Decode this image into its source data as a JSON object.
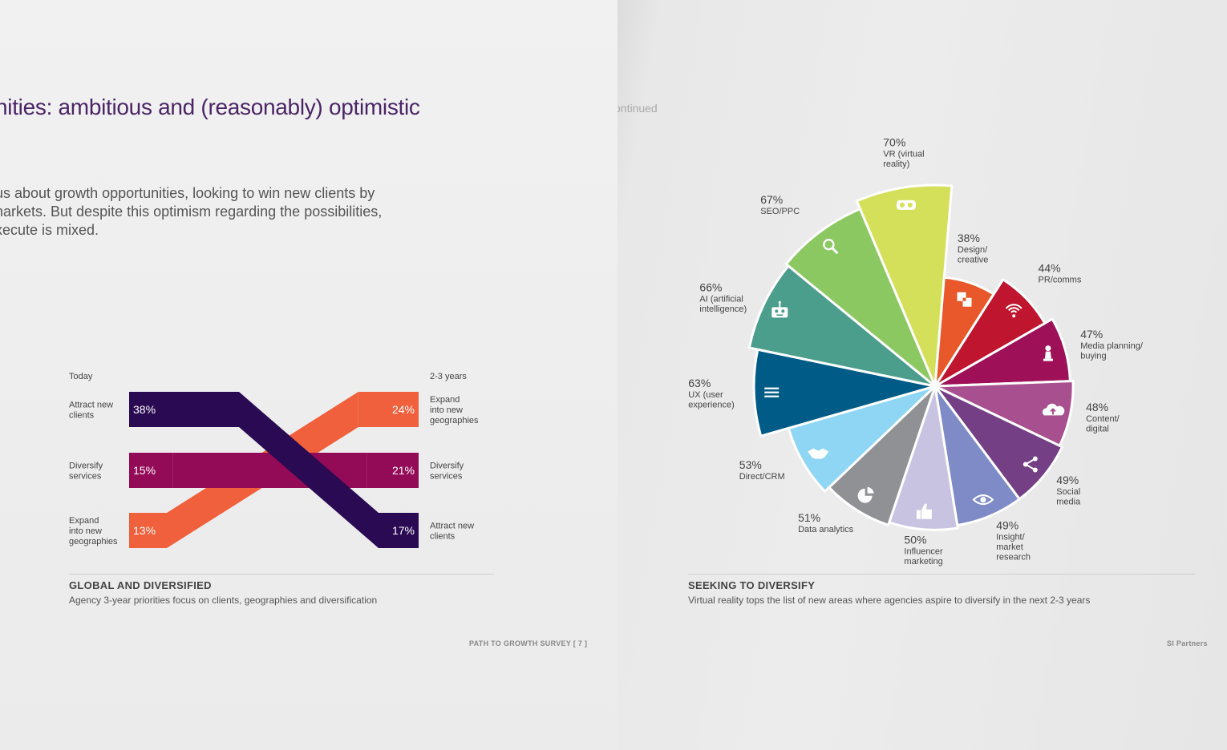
{
  "left_page": {
    "headline": "nities: ambitious and (reasonably) optimistic",
    "intro_lines": [
      "us about growth opportunities, looking to win new clients by",
      "narkets. But despite this optimism regarding the possibilities,",
      "xecute is mixed."
    ],
    "caption_title": "GLOBAL AND DIVERSIFIED",
    "caption_sub": "Agency 3-year priorities focus on clients, geographies and diversification",
    "footer": "PATH TO GROWTH SURVEY  [ 7 ]"
  },
  "right_page": {
    "continued": "ontinued",
    "caption_title": "SEEKING TO DIVERSIFY",
    "caption_sub": "Virtual reality tops the list of new areas where agencies aspire to diversify in the next 2-3 years",
    "footer": "SI Partners"
  },
  "colors": {
    "attract": "#2a0a52",
    "diversify": "#930a57",
    "expand": "#f0603c"
  },
  "chart_data": [
    {
      "type": "slope",
      "left_header": "Today",
      "right_header": "2-3 years",
      "left": [
        {
          "label_lines": [
            "Attract new",
            "clients"
          ],
          "value": 38,
          "value_label": "38%",
          "series": "attract"
        },
        {
          "label_lines": [
            "Diversify",
            "services"
          ],
          "value": 15,
          "value_label": "15%",
          "series": "diversify"
        },
        {
          "label_lines": [
            "Expand",
            "into new",
            "geographies"
          ],
          "value": 13,
          "value_label": "13%",
          "series": "expand"
        }
      ],
      "right": [
        {
          "label_lines": [
            "Expand",
            "into new",
            "geographies"
          ],
          "value": 24,
          "value_label": "24%",
          "series": "expand"
        },
        {
          "label_lines": [
            "Diversify",
            "services"
          ],
          "value": 21,
          "value_label": "21%",
          "series": "diversify"
        },
        {
          "label_lines": [
            "Attract new",
            "clients"
          ],
          "value": 17,
          "value_label": "17%",
          "series": "attract"
        }
      ]
    },
    {
      "type": "pie",
      "slices": [
        {
          "pct": "70%",
          "value": 70,
          "label_lines": [
            "VR (virtual",
            "reality)"
          ],
          "color": "#d5e05a",
          "icon": "vr-headset-icon"
        },
        {
          "pct": "38%",
          "value": 38,
          "label_lines": [
            "Design/",
            "creative"
          ],
          "color": "#e8582a",
          "icon": "design-shapes-icon"
        },
        {
          "pct": "44%",
          "value": 44,
          "label_lines": [
            "PR/comms"
          ],
          "color": "#c0152f",
          "icon": "wifi-icon"
        },
        {
          "pct": "47%",
          "value": 47,
          "label_lines": [
            "Media planning/",
            "buying"
          ],
          "color": "#9e1058",
          "icon": "chess-piece-icon"
        },
        {
          "pct": "48%",
          "value": 48,
          "label_lines": [
            "Content/",
            "digital"
          ],
          "color": "#a8508f",
          "icon": "cloud-upload-icon"
        },
        {
          "pct": "49%",
          "value": 49,
          "label_lines": [
            "Social",
            "media"
          ],
          "color": "#743f85",
          "icon": "share-icon"
        },
        {
          "pct": "49%",
          "value": 49,
          "label_lines": [
            "Insight/",
            "market",
            "research"
          ],
          "color": "#7f8bc6",
          "icon": "eye-icon"
        },
        {
          "pct": "50%",
          "value": 50,
          "label_lines": [
            "Influencer",
            "marketing"
          ],
          "color": "#c9c3e2",
          "icon": "thumbs-up-icon"
        },
        {
          "pct": "51%",
          "value": 51,
          "label_lines": [
            "Data analytics"
          ],
          "color": "#8f9194",
          "icon": "pie-chart-icon"
        },
        {
          "pct": "53%",
          "value": 53,
          "label_lines": [
            "Direct/CRM"
          ],
          "color": "#8fd6f4",
          "icon": "handshake-icon"
        },
        {
          "pct": "63%",
          "value": 63,
          "label_lines": [
            "UX (user",
            "experience)"
          ],
          "color": "#005c86",
          "icon": "menu-lines-icon"
        },
        {
          "pct": "66%",
          "value": 66,
          "label_lines": [
            "AI (artificial",
            "intelligence)"
          ],
          "color": "#4b9d8c",
          "icon": "robot-icon"
        },
        {
          "pct": "67%",
          "value": 67,
          "label_lines": [
            "SEO/PPC"
          ],
          "color": "#8cc862",
          "icon": "magnifier-icon"
        }
      ]
    }
  ]
}
